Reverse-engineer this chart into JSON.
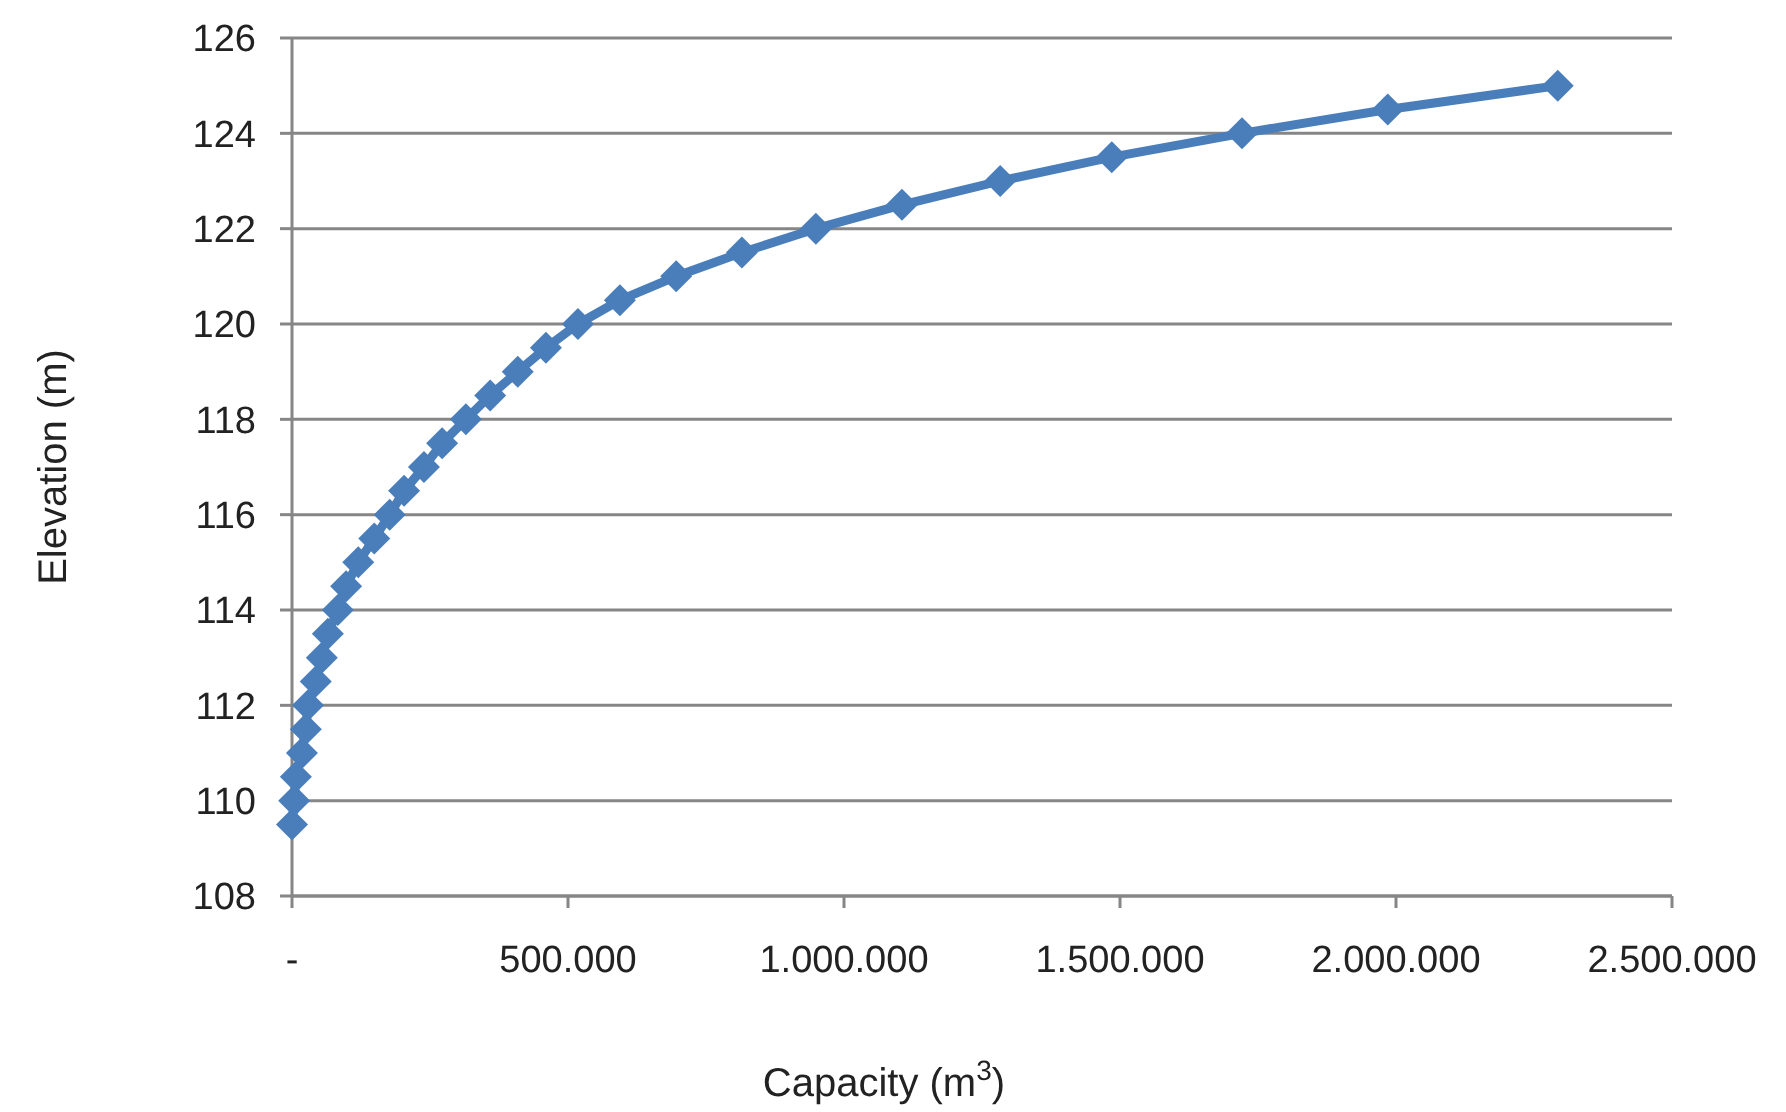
{
  "chart_data": {
    "type": "line",
    "xlabel": "Capacity (m$^{3}$)",
    "ylabel": "Elevation (m)",
    "xlim": [
      0,
      2500000
    ],
    "xticks": [
      {
        "value": 0,
        "label": "-"
      },
      {
        "value": 500000,
        "label": "500.000"
      },
      {
        "value": 1000000,
        "label": "1.000.000"
      },
      {
        "value": 1500000,
        "label": "1.500.000"
      },
      {
        "value": 2000000,
        "label": "2.000.000"
      },
      {
        "value": 2500000,
        "label": "2.500.000"
      }
    ],
    "ylim": [
      108,
      126
    ],
    "yticks": [
      108,
      110,
      112,
      114,
      116,
      118,
      120,
      122,
      124,
      126
    ],
    "grid": "y",
    "marker": "diamond",
    "line_style": "solid",
    "series": [
      {
        "color": "#4a7ebb",
        "x": [
          0,
          4000,
          7000,
          18000,
          25000,
          29000,
          43000,
          54000,
          65000,
          83000,
          98000,
          120000,
          149000,
          177000,
          203000,
          239000,
          272000,
          315000,
          359000,
          409000,
          460000,
          518000,
          594000,
          696000,
          815000,
          949000,
          1105000,
          1283000,
          1485000,
          1721000,
          1985000,
          2293000
        ],
        "values": [
          109.5,
          110,
          110.5,
          111,
          111.5,
          112,
          112.5,
          113,
          113.5,
          114,
          114.5,
          115,
          115.5,
          116,
          116.5,
          117,
          117.5,
          118,
          118.5,
          119,
          119.5,
          120,
          120.5,
          121,
          121.5,
          122,
          122.5,
          123,
          123.5,
          124,
          124.5,
          125
        ]
      }
    ]
  }
}
